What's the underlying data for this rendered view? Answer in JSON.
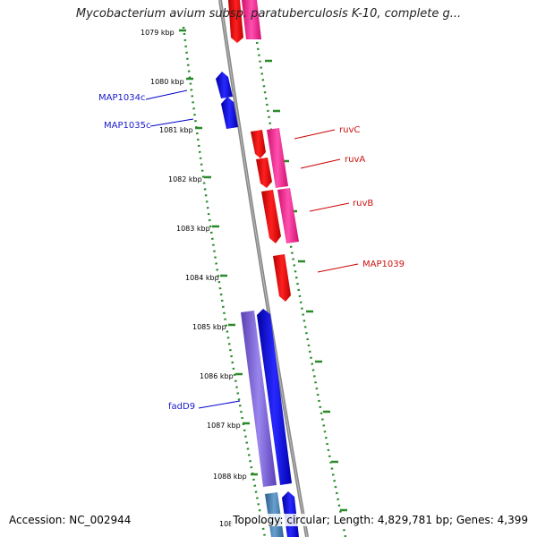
{
  "title": "Mycobacterium avium subsp. paratuberculosis K-10, complete g...",
  "footer": {
    "accession": "Accession: NC_002944",
    "topology": "Topology: circular; Length: 4,829,781 bp; Genes: 4,399"
  },
  "ruler": {
    "ticks": [
      {
        "label": "1079 kbp"
      },
      {
        "label": "1080 kbp"
      },
      {
        "label": "1081 kbp"
      },
      {
        "label": "1082 kbp"
      },
      {
        "label": "1083 kbp"
      },
      {
        "label": "1084 kbp"
      },
      {
        "label": "1085 kbp"
      },
      {
        "label": "1086 kbp"
      },
      {
        "label": "1087 kbp"
      },
      {
        "label": "1088 kbp"
      },
      {
        "label": "108"
      }
    ]
  },
  "genes": {
    "reverse": [
      {
        "name": "MAP1034c",
        "color": "#1a1acc"
      },
      {
        "name": "MAP1035c",
        "color": "#1a1acc"
      },
      {
        "name": "fadD9",
        "color": "#1a1acc"
      }
    ],
    "forward": [
      {
        "name": "ruvC",
        "color": "#cc1111"
      },
      {
        "name": "ruvA",
        "color": "#cc1111"
      },
      {
        "name": "ruvB",
        "color": "#cc1111"
      },
      {
        "name": "MAP1039",
        "color": "#cc1111"
      }
    ]
  },
  "colors": {
    "backbone": "#888888",
    "ruler_ticks": "#2a8a2a",
    "cds_forward": "#ff0000",
    "cds_reverse": "#0000ee",
    "feature_forward": "#ff1493",
    "feature_reverse": "#7b68ee",
    "feature_reverse_alt": "#4682b4"
  }
}
